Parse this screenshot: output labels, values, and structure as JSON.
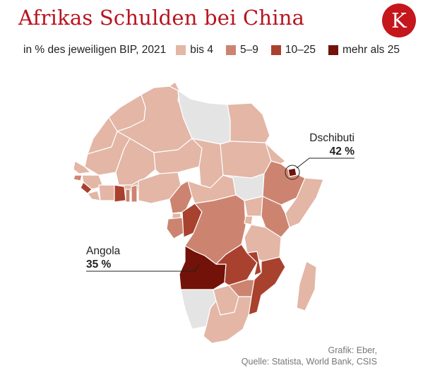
{
  "title": "Afrikas Schulden bei China",
  "logo_letter": "K",
  "subtitle": "in % des jeweiligen BIP, 2021",
  "legend": [
    {
      "label": "bis 4",
      "color": "#e3b6a6"
    },
    {
      "label": "5–9",
      "color": "#cc8470"
    },
    {
      "label": "10–25",
      "color": "#a9412f"
    },
    {
      "label": "mehr als 25",
      "color": "#731208"
    }
  ],
  "no_data_color": "#e4e4e4",
  "callouts": {
    "djibouti": {
      "name": "Dschibuti",
      "value": "42 %"
    },
    "angola": {
      "name": "Angola",
      "value": "35 %"
    }
  },
  "credits": {
    "line1": "Grafik: Eber,",
    "line2": "Quelle: Statista, World Bank, CSIS"
  }
}
